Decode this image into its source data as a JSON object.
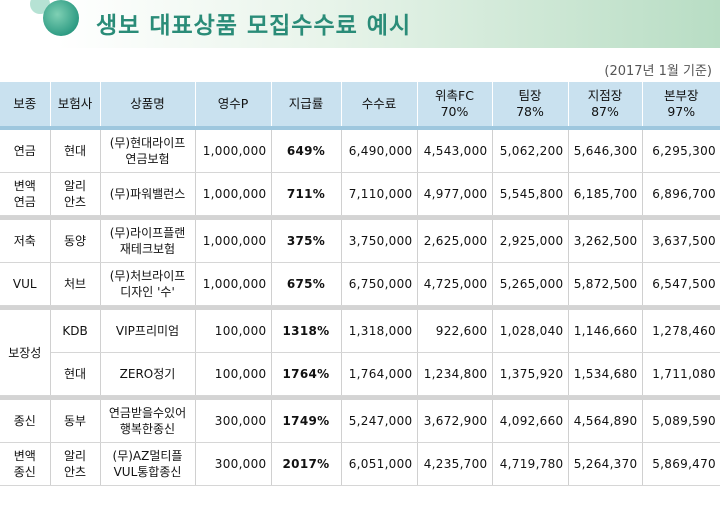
{
  "title": "생보 대표상품 모집수수료 예시",
  "subtitle": "(2017년 1월 기준)",
  "headers": [
    {
      "l1": "보종",
      "l2": ""
    },
    {
      "l1": "보험사",
      "l2": ""
    },
    {
      "l1": "상품명",
      "l2": ""
    },
    {
      "l1": "영수P",
      "l2": ""
    },
    {
      "l1": "지급률",
      "l2": ""
    },
    {
      "l1": "수수료",
      "l2": ""
    },
    {
      "l1": "위촉FC",
      "l2": "70%"
    },
    {
      "l1": "팀장",
      "l2": "78%"
    },
    {
      "l1": "지점장",
      "l2": "87%"
    },
    {
      "l1": "본부장",
      "l2": "97%"
    }
  ],
  "groups": [
    {
      "rows": [
        {
          "type": [
            "연금",
            ""
          ],
          "company": [
            "현대",
            ""
          ],
          "product": [
            "(무)현대라이프",
            "연금보험"
          ],
          "premium": "1,000,000",
          "rate": "649%",
          "fee": "6,490,000",
          "fc": "4,543,000",
          "team": "5,062,200",
          "branch": "5,646,300",
          "hq": "6,295,300"
        },
        {
          "type": [
            "변액",
            "연금"
          ],
          "company": [
            "알리",
            "안츠"
          ],
          "product": [
            "(무)파워밸런스",
            ""
          ],
          "premium": "1,000,000",
          "rate": "711%",
          "fee": "7,110,000",
          "fc": "4,977,000",
          "team": "5,545,800",
          "branch": "6,185,700",
          "hq": "6,896,700"
        }
      ]
    },
    {
      "rows": [
        {
          "type": [
            "저축",
            ""
          ],
          "company": [
            "동양",
            ""
          ],
          "product": [
            "(무)라이프플랜",
            "재테크보험"
          ],
          "premium": "1,000,000",
          "rate": "375%",
          "fee": "3,750,000",
          "fc": "2,625,000",
          "team": "2,925,000",
          "branch": "3,262,500",
          "hq": "3,637,500"
        },
        {
          "type": [
            "VUL",
            ""
          ],
          "company": [
            "처브",
            ""
          ],
          "product": [
            "(무)처브라이프",
            "디자인 '수'"
          ],
          "premium": "1,000,000",
          "rate": "675%",
          "fee": "6,750,000",
          "fc": "4,725,000",
          "team": "5,265,000",
          "branch": "5,872,500",
          "hq": "6,547,500"
        }
      ]
    },
    {
      "merged_type": "보장성",
      "rows": [
        {
          "company": [
            "KDB",
            ""
          ],
          "product": [
            "VIP프리미엄",
            ""
          ],
          "premium": "100,000",
          "rate": "1318%",
          "fee": "1,318,000",
          "fc": "922,600",
          "team": "1,028,040",
          "branch": "1,146,660",
          "hq": "1,278,460"
        },
        {
          "company": [
            "현대",
            ""
          ],
          "product": [
            "ZERO정기",
            ""
          ],
          "premium": "100,000",
          "rate": "1764%",
          "fee": "1,764,000",
          "fc": "1,234,800",
          "team": "1,375,920",
          "branch": "1,534,680",
          "hq": "1,711,080"
        }
      ]
    },
    {
      "rows": [
        {
          "type": [
            "종신",
            ""
          ],
          "company": [
            "동부",
            ""
          ],
          "product": [
            "연금받을수있어",
            "행복한종신"
          ],
          "premium": "300,000",
          "rate": "1749%",
          "fee": "5,247,000",
          "fc": "3,672,900",
          "team": "4,092,660",
          "branch": "4,564,890",
          "hq": "5,089,590"
        },
        {
          "type": [
            "변액",
            "종신"
          ],
          "company": [
            "알리",
            "안츠"
          ],
          "product": [
            "(무)AZ멀티플",
            "VUL통합종신"
          ],
          "premium": "300,000",
          "rate": "2017%",
          "fee": "6,051,000",
          "fc": "4,235,700",
          "team": "4,719,780",
          "branch": "5,264,370",
          "hq": "5,869,470"
        }
      ]
    }
  ]
}
